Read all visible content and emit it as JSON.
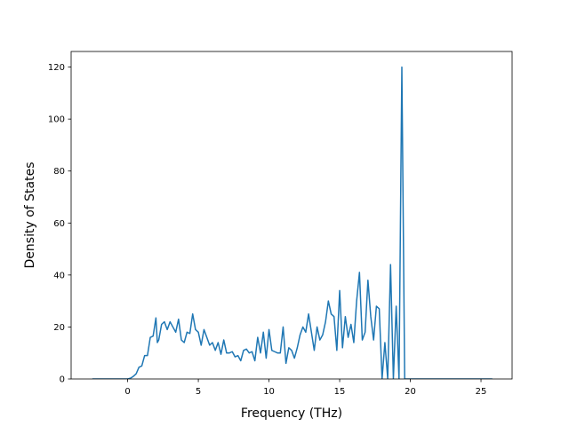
{
  "chart_data": {
    "type": "line",
    "title": "",
    "xlabel": "Frequency (THz)",
    "ylabel": "Density of States",
    "xlim": [
      -4.0,
      27.2
    ],
    "ylim": [
      0,
      126
    ],
    "xticks": [
      0,
      5,
      10,
      15,
      20,
      25
    ],
    "yticks": [
      0,
      20,
      40,
      60,
      80,
      100,
      120
    ],
    "grid": false,
    "line_color": "#1f77b4",
    "series": [
      {
        "x": [
          -2.5,
          -2.0,
          -1.5,
          -1.0,
          -0.5,
          0.0,
          0.2,
          0.4,
          0.6,
          0.8,
          1.0,
          1.2,
          1.4,
          1.6,
          1.8,
          2.0,
          2.1,
          2.2,
          2.4,
          2.6,
          2.8,
          3.0,
          3.2,
          3.4,
          3.6,
          3.8,
          4.0,
          4.2,
          4.4,
          4.6,
          4.8,
          5.0,
          5.2,
          5.4,
          5.6,
          5.8,
          6.0,
          6.2,
          6.4,
          6.6,
          6.8,
          7.0,
          7.2,
          7.4,
          7.6,
          7.8,
          8.0,
          8.2,
          8.4,
          8.6,
          8.8,
          9.0,
          9.2,
          9.4,
          9.6,
          9.8,
          10.0,
          10.2,
          10.4,
          10.6,
          10.8,
          11.0,
          11.2,
          11.4,
          11.6,
          11.8,
          12.0,
          12.2,
          12.4,
          12.6,
          12.8,
          13.0,
          13.2,
          13.4,
          13.6,
          13.8,
          14.0,
          14.2,
          14.4,
          14.6,
          14.8,
          15.0,
          15.2,
          15.4,
          15.6,
          15.8,
          16.0,
          16.2,
          16.4,
          16.6,
          16.8,
          17.0,
          17.2,
          17.4,
          17.6,
          17.8,
          18.0,
          18.2,
          18.4,
          18.6,
          18.8,
          19.0,
          19.2,
          19.4,
          19.6,
          19.8,
          20.0,
          21.0,
          22.0,
          23.0,
          24.0,
          25.0,
          25.8
        ],
        "y": [
          0,
          0,
          0,
          0,
          0,
          0,
          0.3,
          1,
          2,
          4.5,
          5,
          9,
          9,
          16,
          16.5,
          23.5,
          14,
          15,
          21,
          22,
          19,
          22,
          20,
          18,
          23,
          15,
          14,
          18,
          17.5,
          25,
          19,
          18,
          13,
          19,
          16,
          13,
          14,
          11,
          14,
          9.5,
          15,
          10,
          10,
          10.5,
          8.5,
          9,
          7,
          11,
          11.5,
          10,
          10.5,
          7,
          16,
          10,
          18,
          8,
          19,
          11,
          10.5,
          10,
          10,
          20,
          6,
          12,
          11,
          8,
          12,
          17,
          20,
          18,
          25,
          18,
          11,
          20,
          15,
          17,
          22,
          30,
          25,
          24,
          11,
          34,
          12,
          24,
          16,
          21,
          14,
          30,
          41,
          15,
          18,
          38,
          24,
          15,
          28,
          27,
          0,
          14,
          0,
          44,
          0,
          28,
          0,
          120,
          0,
          0,
          0,
          0,
          0,
          0,
          0,
          0,
          0
        ]
      }
    ]
  }
}
